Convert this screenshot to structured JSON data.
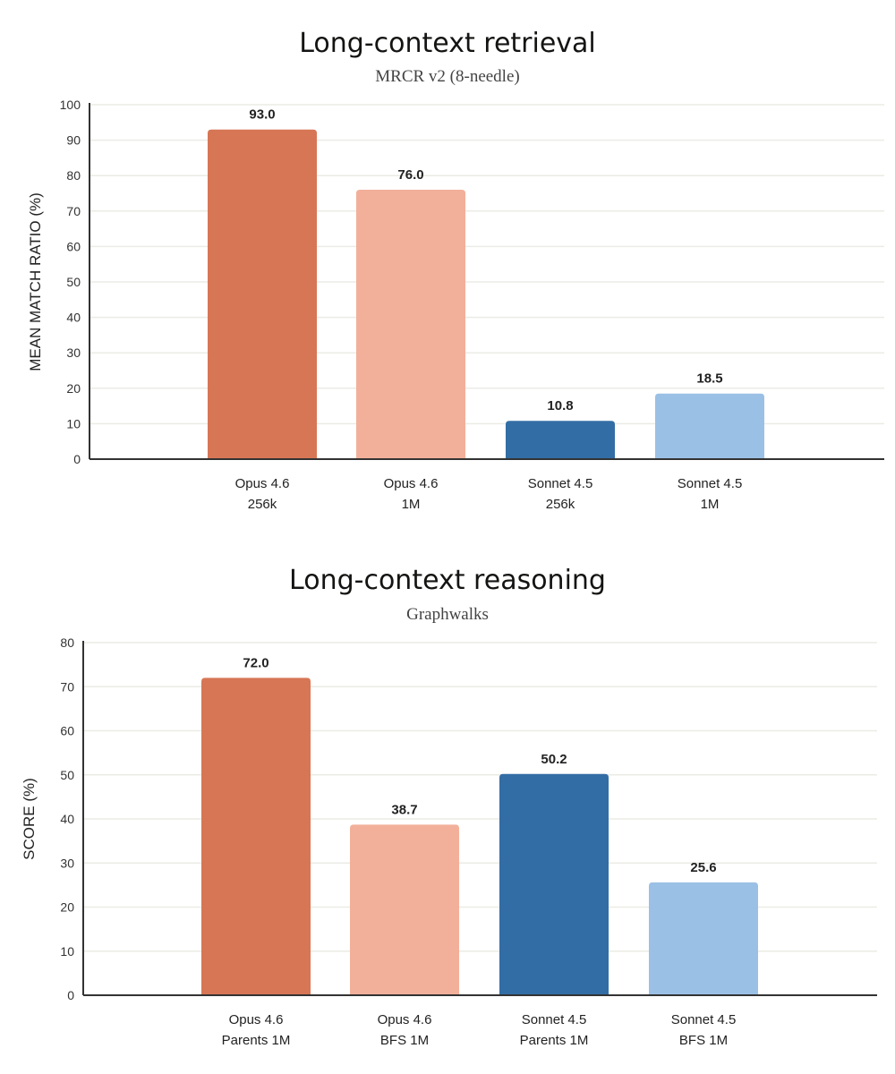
{
  "chart_data": [
    {
      "type": "bar",
      "title": "Long-context retrieval",
      "subtitle": "MRCR v2 (8-needle)",
      "xlabel": "",
      "ylabel": "MEAN MATCH RATIO (%)",
      "ylim": [
        0,
        100
      ],
      "yticks": [
        0,
        10,
        20,
        30,
        40,
        50,
        60,
        70,
        80,
        90,
        100
      ],
      "grid": true,
      "categories": [
        [
          "Opus 4.6",
          "256k"
        ],
        [
          "Opus 4.6",
          "1M"
        ],
        [
          "Sonnet 4.5",
          "256k"
        ],
        [
          "Sonnet 4.5",
          "1M"
        ]
      ],
      "values": [
        93.0,
        76.0,
        10.8,
        18.5
      ],
      "labels": [
        "93.0",
        "76.0",
        "10.8",
        "18.5"
      ],
      "colors": [
        "#D77655",
        "#F2B09A",
        "#336DA5",
        "#9BC0E5"
      ]
    },
    {
      "type": "bar",
      "title": "Long-context reasoning",
      "subtitle": "Graphwalks",
      "xlabel": "",
      "ylabel": "SCORE (%)",
      "ylim": [
        0,
        80
      ],
      "yticks": [
        0,
        10,
        20,
        30,
        40,
        50,
        60,
        70,
        80
      ],
      "grid": true,
      "categories": [
        [
          "Opus 4.6",
          "Parents 1M"
        ],
        [
          "Opus 4.6",
          "BFS 1M"
        ],
        [
          "Sonnet 4.5",
          "Parents 1M"
        ],
        [
          "Sonnet 4.5",
          "BFS 1M"
        ]
      ],
      "values": [
        72.0,
        38.7,
        50.2,
        25.6
      ],
      "labels": [
        "72.0",
        "38.7",
        "50.2",
        "25.6"
      ],
      "colors": [
        "#D77655",
        "#F2B09A",
        "#336DA5",
        "#9BC0E5"
      ]
    }
  ]
}
